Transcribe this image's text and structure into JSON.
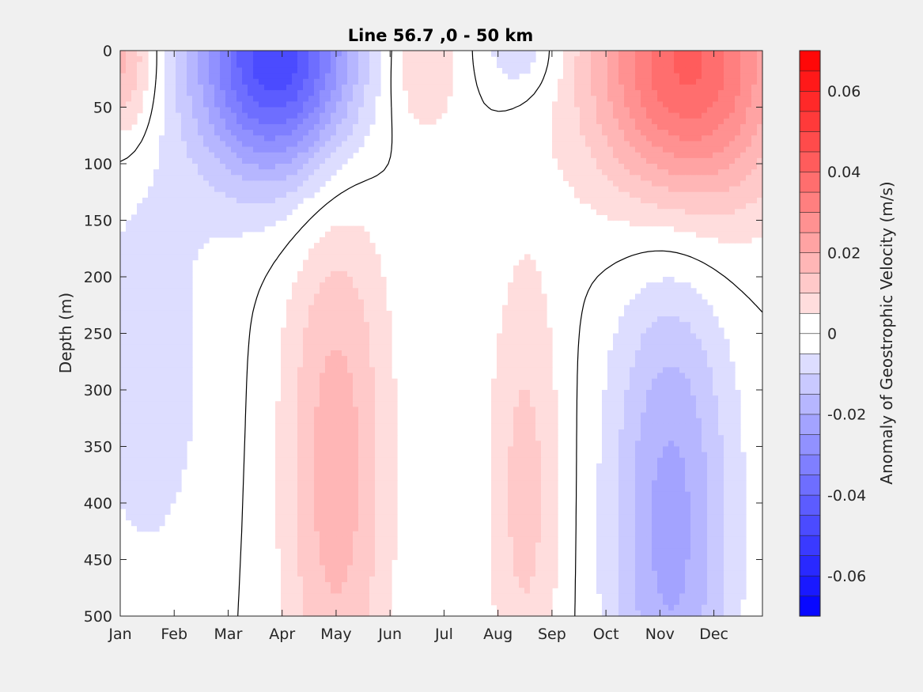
{
  "chart_data": {
    "type": "heatmap",
    "subtype": "filled-contour",
    "title": "Line 56.7 ,0 - 50 km",
    "xlabel": "",
    "ylabel": "Depth (m)",
    "x_ticks": [
      "Jan",
      "Feb",
      "Mar",
      "Apr",
      "May",
      "Jun",
      "Jul",
      "Aug",
      "Sep",
      "Oct",
      "Nov",
      "Dec"
    ],
    "y_ticks": [
      "0",
      "50",
      "100",
      "150",
      "200",
      "250",
      "300",
      "350",
      "400",
      "450",
      "500"
    ],
    "x_range_months": [
      1,
      12.9
    ],
    "ylim": [
      0,
      500
    ],
    "y_reversed": true,
    "colorbar": {
      "label": "Anomaly of Geostrophic Velocity (m/s)",
      "ticks": [
        "0.06",
        "0.04",
        "0.02",
        "0",
        "-0.02",
        "-0.04",
        "-0.06"
      ],
      "tick_values": [
        0.06,
        0.04,
        0.02,
        0,
        -0.02,
        -0.04,
        -0.06
      ],
      "clim": [
        -0.07,
        0.07
      ],
      "levels": 28,
      "colormap": "blue-white-red"
    },
    "features": [
      {
        "name": "negative core",
        "x": 3.9,
        "y": 5,
        "value": -0.05,
        "sx": 1.05,
        "sy": 75
      },
      {
        "name": "positive core surface",
        "x": 11.5,
        "y": 15,
        "value": 0.042,
        "sx": 1.25,
        "sy": 90
      },
      {
        "name": "positive early Jan",
        "x": 1.05,
        "y": 10,
        "value": 0.018,
        "sx": 0.45,
        "sy": 50
      },
      {
        "name": "positive Jun",
        "x": 6.6,
        "y": 10,
        "value": 0.011,
        "sx": 0.5,
        "sy": 50
      },
      {
        "name": "negative Aug",
        "x": 8.4,
        "y": 0,
        "value": -0.01,
        "sx": 0.5,
        "sy": 30
      },
      {
        "name": "negative deep Jan",
        "x": 1.5,
        "y": 280,
        "value": -0.008,
        "sx": 0.9,
        "sy": 150
      },
      {
        "name": "positive deep May",
        "x": 5.0,
        "y": 370,
        "value": 0.018,
        "sx": 0.7,
        "sy": 180
      },
      {
        "name": "positive deep Aug",
        "x": 8.5,
        "y": 390,
        "value": 0.012,
        "sx": 0.5,
        "sy": 150
      },
      {
        "name": "negative deep Nov",
        "x": 11.2,
        "y": 420,
        "value": -0.022,
        "sx": 0.8,
        "sy": 170
      }
    ]
  }
}
